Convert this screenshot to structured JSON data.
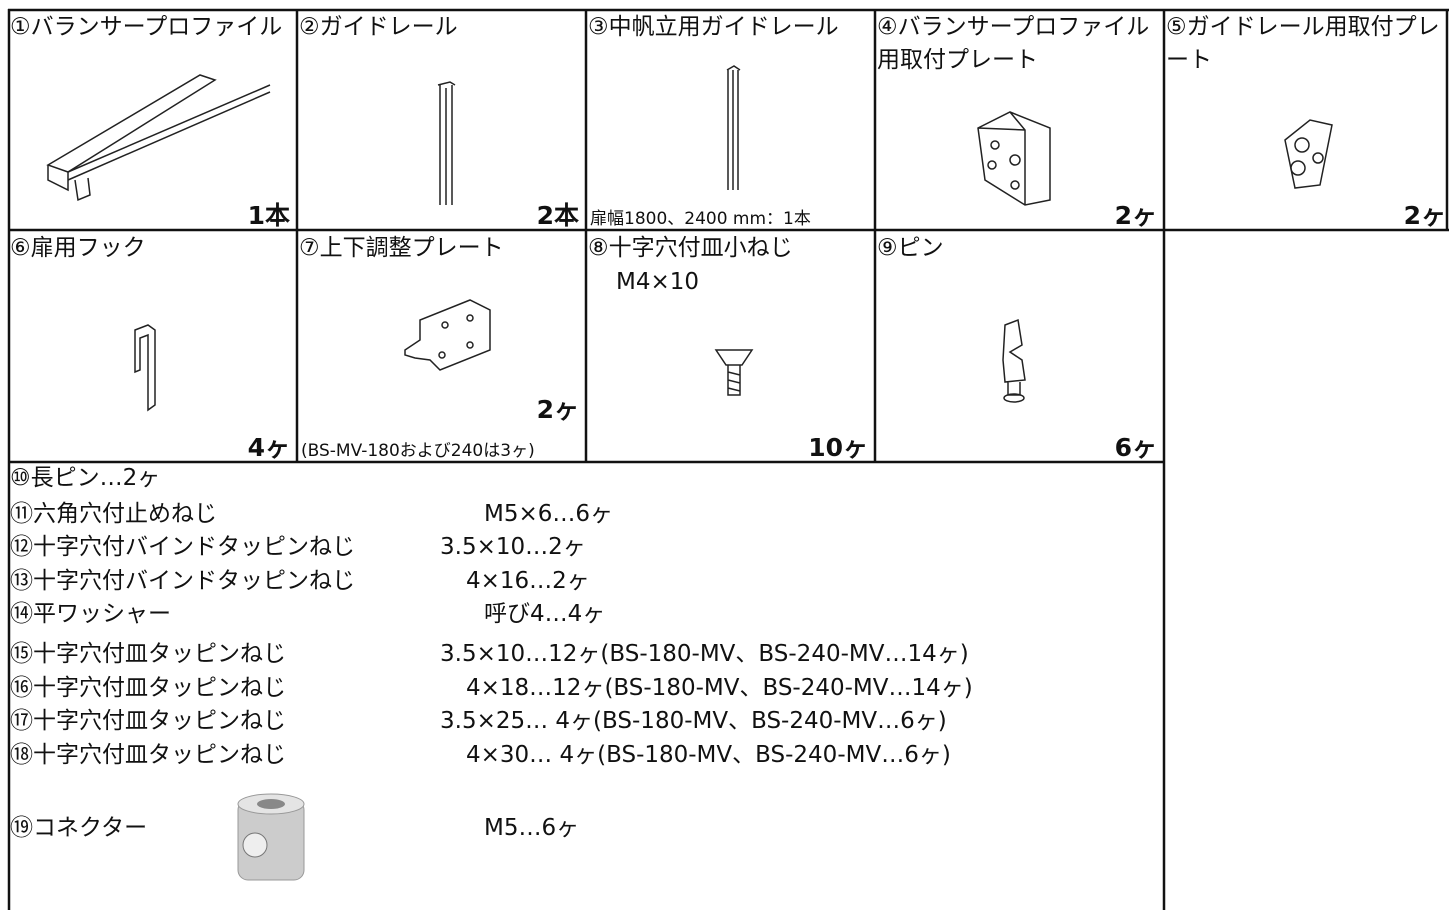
{
  "cells": [
    {
      "title": "①バランサープロファイル",
      "quantity": "1本"
    },
    {
      "title": "②ガイドレール",
      "quantity": "2本"
    },
    {
      "title": "③中帆立用ガイドレール",
      "quantity": "扉幅1800、2400 mm：1本"
    },
    {
      "title": "④バランサープロファイル用取付プレート",
      "quantity": "2ヶ"
    },
    {
      "title": "⑤ガイドレール用取付プレート",
      "quantity": "2ヶ"
    },
    {
      "title": "⑥扉用フック",
      "quantity": "4ヶ"
    },
    {
      "title": "⑦上下調整プレート",
      "quantity": "2ヶ",
      "note": "(BS-MV-180および240は3ヶ)"
    },
    {
      "title": "⑧十字穴付皿小ねじ",
      "size": "M4×10",
      "quantity": "10ヶ"
    },
    {
      "title": "⑨ピン",
      "quantity": "6ヶ"
    }
  ],
  "list": [
    {
      "name": "⑩長ピン…2ヶ"
    },
    {
      "name": "⑪六角穴付止めねじ",
      "spec": "M5×6…6ヶ"
    },
    {
      "name": "⑫十字穴付バインドタッピンねじ",
      "spec": "3.5×10…2ヶ"
    },
    {
      "name": "⑬十字穴付バインドタッピンねじ",
      "spec": "4×16…2ヶ"
    },
    {
      "name": "⑭平ワッシャー",
      "spec": "呼び4…4ヶ"
    },
    {
      "name": "⑮十字穴付皿タッピンねじ",
      "spec": "3.5×10…12ヶ(BS-180-MV、BS-240-MV…14ヶ)"
    },
    {
      "name": "⑯十字穴付皿タッピンねじ",
      "spec": "4×18…12ヶ(BS-180-MV、BS-240-MV…14ヶ)"
    },
    {
      "name": "⑰十字穴付皿タッピンねじ",
      "spec": "3.5×25… 4ヶ(BS-180-MV、BS-240-MV…6ヶ)"
    },
    {
      "name": "⑱十字穴付皿タッピンねじ",
      "spec": "4×30… 4ヶ(BS-180-MV、BS-240-MV…6ヶ)"
    },
    {
      "name": "⑲コネクター",
      "spec": "M5…6ヶ"
    }
  ]
}
